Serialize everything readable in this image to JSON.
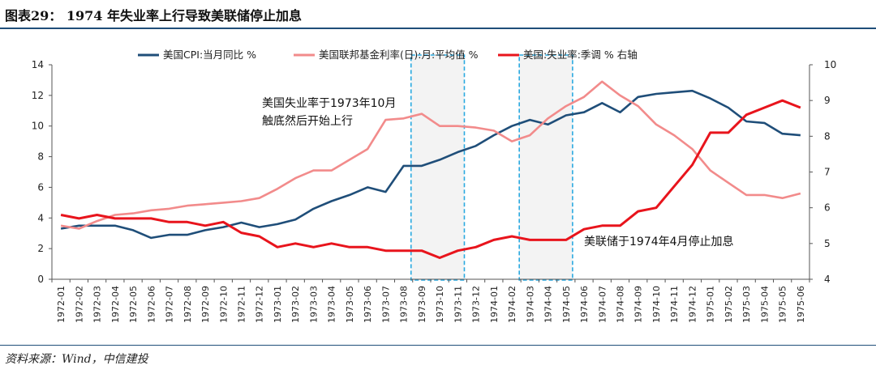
{
  "figure": {
    "title": "图表29： 1974 年失业率上行导致美联储停止加息",
    "source": "资料来源：Wind，中信建投"
  },
  "chart_data": {
    "type": "line",
    "categories": [
      "1972-01",
      "1972-02",
      "1972-03",
      "1972-04",
      "1972-05",
      "1972-06",
      "1972-07",
      "1972-08",
      "1972-09",
      "1972-10",
      "1972-11",
      "1972-12",
      "1973-01",
      "1973-02",
      "1973-03",
      "1973-04",
      "1973-05",
      "1973-06",
      "1973-07",
      "1973-08",
      "1973-09",
      "1973-10",
      "1973-11",
      "1973-12",
      "1974-01",
      "1974-02",
      "1974-03",
      "1974-04",
      "1974-05",
      "1974-06",
      "1974-07",
      "1974-08",
      "1974-09",
      "1974-10",
      "1974-11",
      "1974-12",
      "1975-01",
      "1975-02",
      "1975-03",
      "1975-04",
      "1975-05",
      "1975-06"
    ],
    "series": [
      {
        "name": "美国CPI:当月同比 %",
        "axis": "left",
        "color": "#1f4e79",
        "values": [
          3.3,
          3.5,
          3.5,
          3.5,
          3.2,
          2.7,
          2.9,
          2.9,
          3.2,
          3.4,
          3.7,
          3.4,
          3.6,
          3.9,
          4.6,
          5.1,
          5.5,
          6.0,
          5.7,
          7.4,
          7.4,
          7.8,
          8.3,
          8.7,
          9.4,
          10.0,
          10.4,
          10.1,
          10.7,
          10.9,
          11.5,
          10.9,
          11.9,
          12.1,
          12.2,
          12.3,
          11.8,
          11.2,
          10.3,
          10.2,
          9.5,
          9.4
        ]
      },
      {
        "name": "美国联邦基金利率(日):月:平均值 %",
        "axis": "left",
        "color": "#f28b8b",
        "values": [
          3.5,
          3.3,
          3.8,
          4.2,
          4.3,
          4.5,
          4.6,
          4.8,
          4.9,
          5.0,
          5.1,
          5.3,
          5.9,
          6.6,
          7.1,
          7.1,
          7.8,
          8.5,
          10.4,
          10.5,
          10.8,
          10.0,
          10.0,
          9.9,
          9.7,
          9.0,
          9.4,
          10.5,
          11.3,
          11.9,
          12.9,
          12.0,
          11.3,
          10.1,
          9.4,
          8.5,
          7.1,
          6.3,
          5.5,
          5.5,
          5.3,
          5.6
        ]
      },
      {
        "name": "美国:失业率:季调 % 右轴",
        "axis": "right",
        "color": "#e8141c",
        "values": [
          5.8,
          5.7,
          5.8,
          5.7,
          5.7,
          5.7,
          5.6,
          5.6,
          5.5,
          5.6,
          5.3,
          5.2,
          4.9,
          5.0,
          4.9,
          5.0,
          4.9,
          4.9,
          4.8,
          4.8,
          4.8,
          4.6,
          4.8,
          4.9,
          5.1,
          5.2,
          5.1,
          5.1,
          5.1,
          5.4,
          5.5,
          5.5,
          5.9,
          6.0,
          6.6,
          7.2,
          8.1,
          8.1,
          8.6,
          8.8,
          9.0,
          8.8
        ]
      }
    ],
    "y_left": {
      "min": 0,
      "max": 14,
      "ticks": [
        "0",
        "2",
        "4",
        "6",
        "8",
        "10",
        "12",
        "14"
      ]
    },
    "y_right": {
      "min": 4,
      "max": 10,
      "ticks": [
        "4",
        "5",
        "6",
        "7",
        "8",
        "9",
        "10"
      ]
    },
    "legend_position": "top",
    "grid": false,
    "highlight_ranges": [
      {
        "from": "1973-09",
        "to": "1973-11"
      },
      {
        "from": "1974-03",
        "to": "1974-05"
      }
    ],
    "annotations": [
      {
        "lines": [
          "美国失业率于1973年10月",
          "触底然后开始上行"
        ]
      },
      {
        "lines": [
          "美联储于1974年4月停止加息"
        ]
      }
    ]
  }
}
